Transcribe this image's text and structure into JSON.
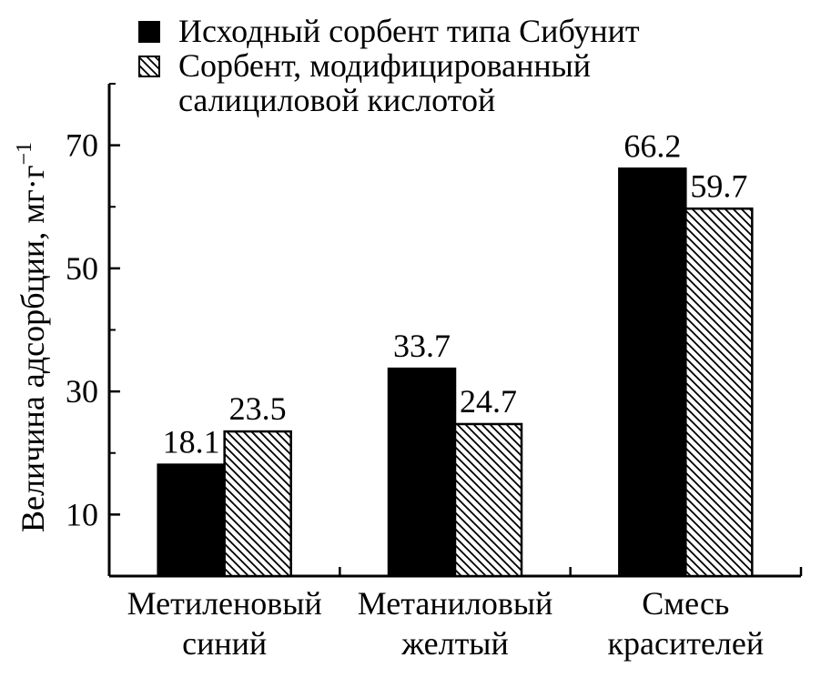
{
  "chart_data": {
    "type": "bar",
    "title": "",
    "xlabel": "",
    "ylabel": "Величина адсорбции, мг·г",
    "ylabel_sup": "−1",
    "ylim": [
      0,
      80
    ],
    "yticks": [
      10,
      30,
      50,
      70
    ],
    "grid": false,
    "legend_position": "top",
    "categories": [
      [
        "Метиленовый",
        "синий"
      ],
      [
        "Метаниловый",
        "желтый"
      ],
      [
        "Смесь",
        "красителей"
      ]
    ],
    "series": [
      {
        "name": "Исходный сорбент типа Сибунит",
        "name_lines": [
          "Исходный сорбент типа Сибунит"
        ],
        "fill": "solid",
        "color": "#000000",
        "values": [
          18.1,
          33.7,
          66.2
        ],
        "labels": [
          "18.1",
          "33.7",
          "66.2"
        ]
      },
      {
        "name": "Сорбент, модифицированный салициловой кислотой",
        "name_lines": [
          "Сорбент, модифицированный",
          "салициловой кислотой"
        ],
        "fill": "hatched",
        "color": "#000000",
        "values": [
          23.5,
          24.7,
          59.7
        ],
        "labels": [
          "23.5",
          "24.7",
          "59.7"
        ]
      }
    ]
  }
}
